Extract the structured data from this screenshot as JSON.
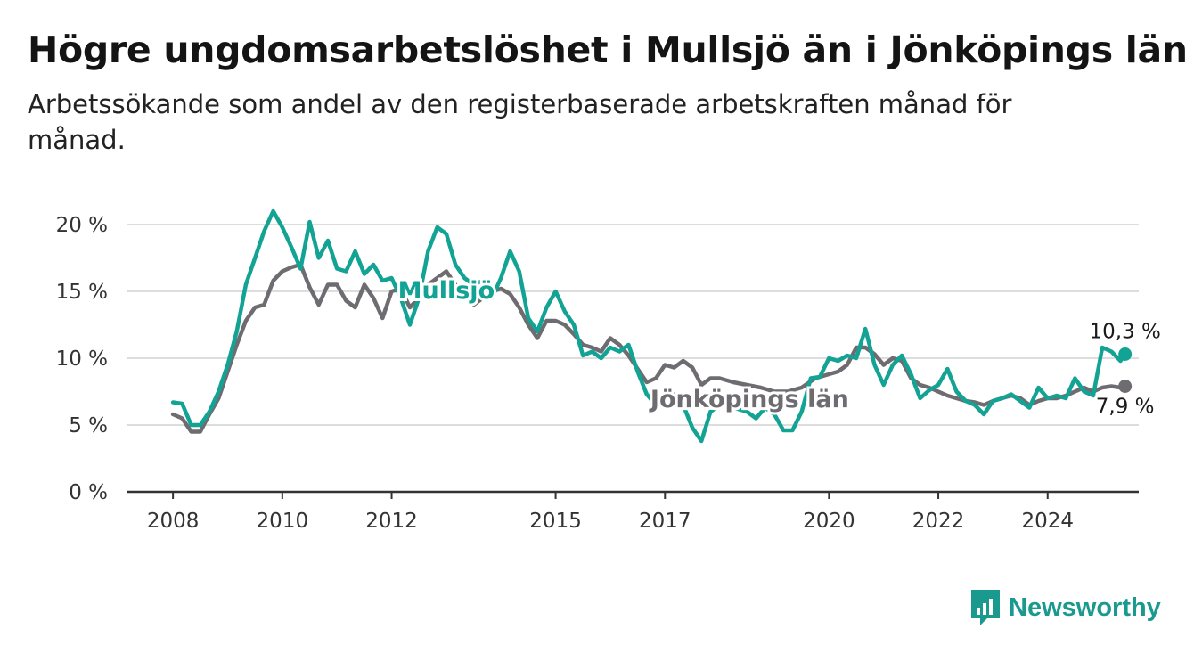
{
  "title": "Högre ungdomsarbetslöshet i Mullsjö än i Jönköpings län",
  "subtitle": "Arbetssökande som andel av den registerbaserade arbetskraften månad för månad.",
  "brand": {
    "name": "Newsworthy",
    "icon": "newsworthy-logo-icon"
  },
  "colors": {
    "mullsjo": "#13a394",
    "lan": "#6e6c70",
    "grid": "#dddddd",
    "axis": "#333333"
  },
  "chart_data": {
    "type": "line",
    "title": "Högre ungdomsarbetslöshet i Mullsjö än i Jönköpings län",
    "ylabel": "",
    "xlabel": "",
    "ylim": [
      0,
      21
    ],
    "xlim": [
      "2007-03",
      "2025-09"
    ],
    "y_ticks": [
      0,
      5,
      10,
      15,
      20
    ],
    "y_tick_labels": [
      "0 %",
      "5 %",
      "10 %",
      "15 %",
      "20 %"
    ],
    "x_ticks": [
      "2008-01",
      "2010-01",
      "2012-01",
      "2015-01",
      "2017-01",
      "2020-01",
      "2022-01",
      "2024-01"
    ],
    "x_tick_labels": [
      "2008",
      "2010",
      "2012",
      "2015",
      "2017",
      "2020",
      "2022",
      "2024"
    ],
    "grid": true,
    "series": [
      {
        "name": "Mullsjö",
        "color": "#13a394",
        "end_label": "10,3 %",
        "points": [
          [
            "2008-01",
            6.7
          ],
          [
            "2008-03",
            6.6
          ],
          [
            "2008-05",
            5.0
          ],
          [
            "2008-07",
            5.0
          ],
          [
            "2008-09",
            6.0
          ],
          [
            "2008-11",
            7.5
          ],
          [
            "2009-01",
            9.5
          ],
          [
            "2009-03",
            12.0
          ],
          [
            "2009-05",
            15.5
          ],
          [
            "2009-07",
            17.5
          ],
          [
            "2009-09",
            19.5
          ],
          [
            "2009-11",
            21.0
          ],
          [
            "2010-01",
            19.8
          ],
          [
            "2010-03",
            18.3
          ],
          [
            "2010-05",
            16.7
          ],
          [
            "2010-07",
            20.2
          ],
          [
            "2010-09",
            17.5
          ],
          [
            "2010-11",
            18.8
          ],
          [
            "2011-01",
            16.7
          ],
          [
            "2011-03",
            16.5
          ],
          [
            "2011-05",
            18.0
          ],
          [
            "2011-07",
            16.3
          ],
          [
            "2011-09",
            17.0
          ],
          [
            "2011-11",
            15.8
          ],
          [
            "2012-01",
            16.0
          ],
          [
            "2012-03",
            14.5
          ],
          [
            "2012-05",
            12.5
          ],
          [
            "2012-07",
            14.5
          ],
          [
            "2012-09",
            18.0
          ],
          [
            "2012-11",
            19.8
          ],
          [
            "2013-01",
            19.3
          ],
          [
            "2013-03",
            17.0
          ],
          [
            "2013-05",
            16.0
          ],
          [
            "2013-07",
            15.5
          ],
          [
            "2013-09",
            15.8
          ],
          [
            "2013-11",
            14.5
          ],
          [
            "2014-01",
            16.0
          ],
          [
            "2014-03",
            18.0
          ],
          [
            "2014-05",
            16.5
          ],
          [
            "2014-07",
            13.0
          ],
          [
            "2014-09",
            12.0
          ],
          [
            "2014-11",
            13.8
          ],
          [
            "2015-01",
            15.0
          ],
          [
            "2015-03",
            13.5
          ],
          [
            "2015-05",
            12.5
          ],
          [
            "2015-07",
            10.2
          ],
          [
            "2015-09",
            10.5
          ],
          [
            "2015-11",
            10.0
          ],
          [
            "2016-01",
            10.8
          ],
          [
            "2016-03",
            10.5
          ],
          [
            "2016-05",
            11.0
          ],
          [
            "2016-07",
            9.0
          ],
          [
            "2016-09",
            7.3
          ],
          [
            "2016-11",
            6.5
          ],
          [
            "2017-01",
            7.0
          ],
          [
            "2017-03",
            7.3
          ],
          [
            "2017-05",
            6.5
          ],
          [
            "2017-07",
            4.8
          ],
          [
            "2017-09",
            3.8
          ],
          [
            "2017-11",
            6.0
          ],
          [
            "2018-01",
            6.5
          ],
          [
            "2018-04",
            6.3
          ],
          [
            "2018-07",
            6.0
          ],
          [
            "2018-09",
            5.5
          ],
          [
            "2018-11",
            6.3
          ],
          [
            "2019-01",
            5.8
          ],
          [
            "2019-03",
            4.6
          ],
          [
            "2019-05",
            4.6
          ],
          [
            "2019-07",
            6.0
          ],
          [
            "2019-09",
            8.5
          ],
          [
            "2019-11",
            8.6
          ],
          [
            "2020-01",
            10.0
          ],
          [
            "2020-03",
            9.8
          ],
          [
            "2020-05",
            10.2
          ],
          [
            "2020-07",
            10.0
          ],
          [
            "2020-09",
            12.2
          ],
          [
            "2020-11",
            9.5
          ],
          [
            "2021-01",
            8.0
          ],
          [
            "2021-03",
            9.5
          ],
          [
            "2021-05",
            10.2
          ],
          [
            "2021-07",
            8.8
          ],
          [
            "2021-09",
            7.0
          ],
          [
            "2021-11",
            7.6
          ],
          [
            "2022-01",
            8.0
          ],
          [
            "2022-03",
            9.2
          ],
          [
            "2022-05",
            7.5
          ],
          [
            "2022-07",
            6.8
          ],
          [
            "2022-09",
            6.5
          ],
          [
            "2022-11",
            5.8
          ],
          [
            "2023-01",
            6.8
          ],
          [
            "2023-03",
            7.0
          ],
          [
            "2023-05",
            7.3
          ],
          [
            "2023-07",
            6.8
          ],
          [
            "2023-09",
            6.3
          ],
          [
            "2023-11",
            7.8
          ],
          [
            "2024-01",
            7.0
          ],
          [
            "2024-03",
            7.2
          ],
          [
            "2024-05",
            7.0
          ],
          [
            "2024-07",
            8.5
          ],
          [
            "2024-09",
            7.5
          ],
          [
            "2024-11",
            7.2
          ],
          [
            "2025-01",
            10.8
          ],
          [
            "2025-03",
            10.5
          ],
          [
            "2025-05",
            9.8
          ],
          [
            "2025-06",
            10.3
          ]
        ]
      },
      {
        "name": "Jönköpings län",
        "color": "#6e6c70",
        "end_label": "7,9 %",
        "points": [
          [
            "2008-01",
            5.8
          ],
          [
            "2008-03",
            5.5
          ],
          [
            "2008-05",
            4.5
          ],
          [
            "2008-07",
            4.5
          ],
          [
            "2008-09",
            5.8
          ],
          [
            "2008-11",
            7.0
          ],
          [
            "2009-01",
            9.0
          ],
          [
            "2009-03",
            11.0
          ],
          [
            "2009-05",
            12.8
          ],
          [
            "2009-07",
            13.8
          ],
          [
            "2009-09",
            14.0
          ],
          [
            "2009-11",
            15.8
          ],
          [
            "2010-01",
            16.5
          ],
          [
            "2010-03",
            16.8
          ],
          [
            "2010-05",
            17.0
          ],
          [
            "2010-07",
            15.3
          ],
          [
            "2010-09",
            14.0
          ],
          [
            "2010-11",
            15.5
          ],
          [
            "2011-01",
            15.5
          ],
          [
            "2011-03",
            14.3
          ],
          [
            "2011-05",
            13.8
          ],
          [
            "2011-07",
            15.5
          ],
          [
            "2011-09",
            14.5
          ],
          [
            "2011-11",
            13.0
          ],
          [
            "2012-01",
            15.0
          ],
          [
            "2012-03",
            15.2
          ],
          [
            "2012-05",
            13.8
          ],
          [
            "2012-07",
            14.5
          ],
          [
            "2012-09",
            15.5
          ],
          [
            "2012-11",
            16.0
          ],
          [
            "2013-01",
            16.5
          ],
          [
            "2013-03",
            15.5
          ],
          [
            "2013-05",
            15.0
          ],
          [
            "2013-07",
            14.0
          ],
          [
            "2013-09",
            14.5
          ],
          [
            "2013-11",
            15.0
          ],
          [
            "2014-01",
            15.2
          ],
          [
            "2014-03",
            14.8
          ],
          [
            "2014-05",
            13.8
          ],
          [
            "2014-07",
            12.5
          ],
          [
            "2014-09",
            11.5
          ],
          [
            "2014-11",
            12.8
          ],
          [
            "2015-01",
            12.8
          ],
          [
            "2015-03",
            12.5
          ],
          [
            "2015-05",
            11.8
          ],
          [
            "2015-07",
            11.0
          ],
          [
            "2015-09",
            10.8
          ],
          [
            "2015-11",
            10.5
          ],
          [
            "2016-01",
            11.5
          ],
          [
            "2016-03",
            11.0
          ],
          [
            "2016-05",
            10.2
          ],
          [
            "2016-07",
            9.2
          ],
          [
            "2016-09",
            8.2
          ],
          [
            "2016-11",
            8.5
          ],
          [
            "2017-01",
            9.5
          ],
          [
            "2017-03",
            9.3
          ],
          [
            "2017-05",
            9.8
          ],
          [
            "2017-07",
            9.3
          ],
          [
            "2017-09",
            8.0
          ],
          [
            "2017-11",
            8.5
          ],
          [
            "2018-01",
            8.5
          ],
          [
            "2018-04",
            8.2
          ],
          [
            "2018-07",
            8.0
          ],
          [
            "2018-10",
            7.8
          ],
          [
            "2019-01",
            7.5
          ],
          [
            "2019-04",
            7.5
          ],
          [
            "2019-07",
            7.8
          ],
          [
            "2019-10",
            8.5
          ],
          [
            "2020-01",
            8.8
          ],
          [
            "2020-03",
            9.0
          ],
          [
            "2020-05",
            9.5
          ],
          [
            "2020-07",
            10.8
          ],
          [
            "2020-09",
            10.8
          ],
          [
            "2020-11",
            10.3
          ],
          [
            "2021-01",
            9.5
          ],
          [
            "2021-03",
            10.0
          ],
          [
            "2021-05",
            9.8
          ],
          [
            "2021-07",
            8.5
          ],
          [
            "2021-09",
            8.0
          ],
          [
            "2021-11",
            7.8
          ],
          [
            "2022-01",
            7.5
          ],
          [
            "2022-03",
            7.2
          ],
          [
            "2022-05",
            7.0
          ],
          [
            "2022-07",
            6.8
          ],
          [
            "2022-09",
            6.7
          ],
          [
            "2022-11",
            6.5
          ],
          [
            "2023-01",
            6.8
          ],
          [
            "2023-03",
            7.0
          ],
          [
            "2023-05",
            7.2
          ],
          [
            "2023-07",
            7.0
          ],
          [
            "2023-09",
            6.5
          ],
          [
            "2023-11",
            6.8
          ],
          [
            "2024-01",
            7.0
          ],
          [
            "2024-03",
            7.0
          ],
          [
            "2024-05",
            7.2
          ],
          [
            "2024-07",
            7.5
          ],
          [
            "2024-09",
            7.8
          ],
          [
            "2024-11",
            7.5
          ],
          [
            "2025-01",
            7.8
          ],
          [
            "2025-03",
            7.9
          ],
          [
            "2025-05",
            7.8
          ],
          [
            "2025-06",
            7.9
          ]
        ]
      }
    ]
  }
}
